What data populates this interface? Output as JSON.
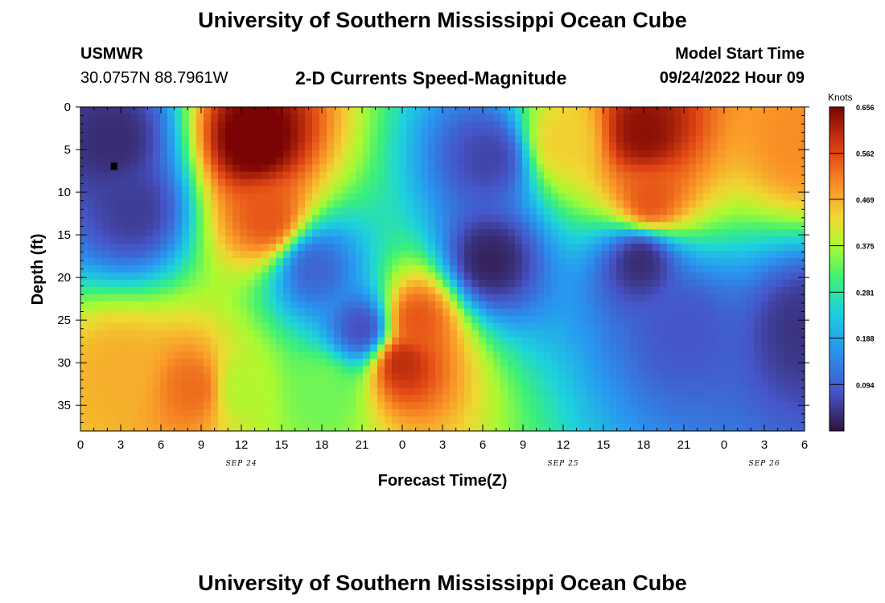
{
  "header": {
    "title": "University of Southern Mississippi Ocean Cube",
    "station": "USMWR",
    "coords": "30.0757N  88.7961W",
    "subtitle": "2-D Currents Speed-Magnitude",
    "model_label": "Model Start Time",
    "model_time": "09/24/2022 Hour 09"
  },
  "footer": {
    "title": "University of Southern Mississippi Ocean Cube"
  },
  "chart_data": {
    "type": "heatmap",
    "xlabel": "Forecast Time(Z)",
    "ylabel": "Depth (ft)",
    "x_ticks": [
      "0",
      "3",
      "6",
      "9",
      "12",
      "15",
      "18",
      "21",
      "0",
      "3",
      "6",
      "9",
      "12",
      "15",
      "18",
      "21",
      "0",
      "3",
      "6"
    ],
    "date_labels": [
      {
        "label": "SEP 24",
        "at_hour": 12
      },
      {
        "label": "SEP 25",
        "at_hour": 36
      },
      {
        "label": "SEP 26",
        "at_hour": 51
      }
    ],
    "xlim_hours": [
      0,
      54
    ],
    "y_ticks": [
      0,
      5,
      10,
      15,
      20,
      25,
      30,
      35
    ],
    "ylim": [
      0,
      38
    ],
    "y_inverted": true,
    "colorbar": {
      "title": "Knots",
      "ticks": [
        "0.656",
        "0.562",
        "0.469",
        "0.375",
        "0.281",
        "0.188",
        "0.094"
      ],
      "min": 0.0,
      "max": 0.656
    },
    "marker": {
      "hour": 2.5,
      "depth": 7
    },
    "features": [
      {
        "hour": 13,
        "depth": 4,
        "value": 0.68
      },
      {
        "hour": 14,
        "depth": 13,
        "value": 0.55
      },
      {
        "hour": 3,
        "depth": 31,
        "value": 0.47
      },
      {
        "hour": 8.5,
        "depth": 33,
        "value": 0.53
      },
      {
        "hour": 24,
        "depth": 30,
        "value": 0.6
      },
      {
        "hour": 25,
        "depth": 25,
        "value": 0.55
      },
      {
        "hour": 36,
        "depth": 4,
        "value": 0.44
      },
      {
        "hour": 42,
        "depth": 3,
        "value": 0.64
      },
      {
        "hour": 42.5,
        "depth": 11,
        "value": 0.55
      },
      {
        "hour": 53.8,
        "depth": 4,
        "value": 0.5
      },
      {
        "hour": 12,
        "depth": 33,
        "value": 0.38
      },
      {
        "hour": 18,
        "depth": 33,
        "value": 0.34
      },
      {
        "hour": 2.5,
        "depth": 4,
        "value": 0.03
      },
      {
        "hour": 4,
        "depth": 12,
        "value": 0.05
      },
      {
        "hour": 30.5,
        "depth": 6,
        "value": 0.06
      },
      {
        "hour": 30.5,
        "depth": 18,
        "value": 0.02
      },
      {
        "hour": 41.8,
        "depth": 18,
        "value": 0.03
      },
      {
        "hour": 17.5,
        "depth": 19,
        "value": 0.1
      },
      {
        "hour": 21,
        "depth": 26,
        "value": 0.07
      },
      {
        "hour": 54,
        "depth": 26,
        "value": 0.04
      },
      {
        "hour": 45,
        "depth": 26,
        "value": 0.08
      }
    ]
  }
}
